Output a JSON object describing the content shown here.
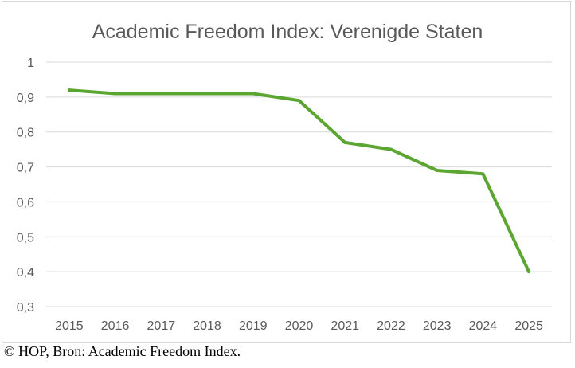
{
  "chart_data": {
    "type": "line",
    "title": "Academic Freedom Index: Verenigde Staten",
    "xlabel": "",
    "ylabel": "",
    "categories": [
      "2015",
      "2016",
      "2017",
      "2018",
      "2019",
      "2020",
      "2021",
      "2022",
      "2023",
      "2024",
      "2025"
    ],
    "series": [
      {
        "name": "Academic Freedom Index",
        "values": [
          0.92,
          0.91,
          0.91,
          0.91,
          0.91,
          0.89,
          0.77,
          0.75,
          0.69,
          0.68,
          0.4
        ],
        "color": "#5ba531"
      }
    ],
    "ylim": [
      0.3,
      1.0
    ],
    "yticks": [
      1.0,
      0.9,
      0.8,
      0.7,
      0.6,
      0.5,
      0.4,
      0.3
    ],
    "ytick_labels": [
      "1",
      "0,9",
      "0,8",
      "0,7",
      "0,6",
      "0,5",
      "0,4",
      "0,3"
    ],
    "grid": true,
    "legend": "none"
  },
  "caption": "© HOP, Bron: Academic Freedom Index."
}
